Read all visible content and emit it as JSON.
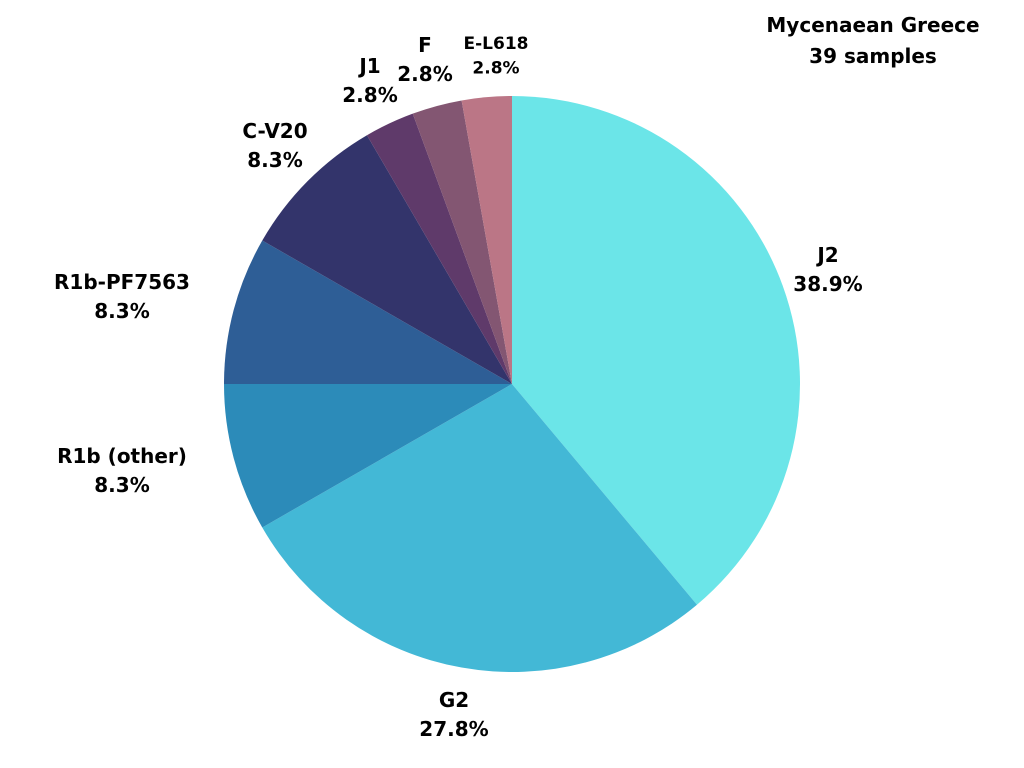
{
  "chart_data": {
    "type": "pie",
    "title": "Mycenaean Greece",
    "subtitle": "39 samples",
    "start_angle_deg": 0,
    "direction": "clockwise",
    "slices": [
      {
        "label": "J2",
        "value": 38.9,
        "value_label": "38.9%",
        "color": "#6be5e8"
      },
      {
        "label": "G2",
        "value": 27.8,
        "value_label": "27.8%",
        "color": "#43b8d6"
      },
      {
        "label": "R1b (other)",
        "value": 8.3,
        "value_label": "8.3%",
        "color": "#2c8bb9"
      },
      {
        "label": "R1b-PF7563",
        "value": 8.3,
        "value_label": "8.3%",
        "color": "#2e5e96"
      },
      {
        "label": "C-V20",
        "value": 8.3,
        "value_label": "8.3%",
        "color": "#33346b"
      },
      {
        "label": "J1",
        "value": 2.8,
        "value_label": "2.8%",
        "color": "#5f3a6a"
      },
      {
        "label": "F",
        "value": 2.8,
        "value_label": "2.8%",
        "color": "#835672"
      },
      {
        "label": "E-L618",
        "value": 2.8,
        "value_label": "2.8%",
        "color": "#bb7686"
      }
    ]
  }
}
